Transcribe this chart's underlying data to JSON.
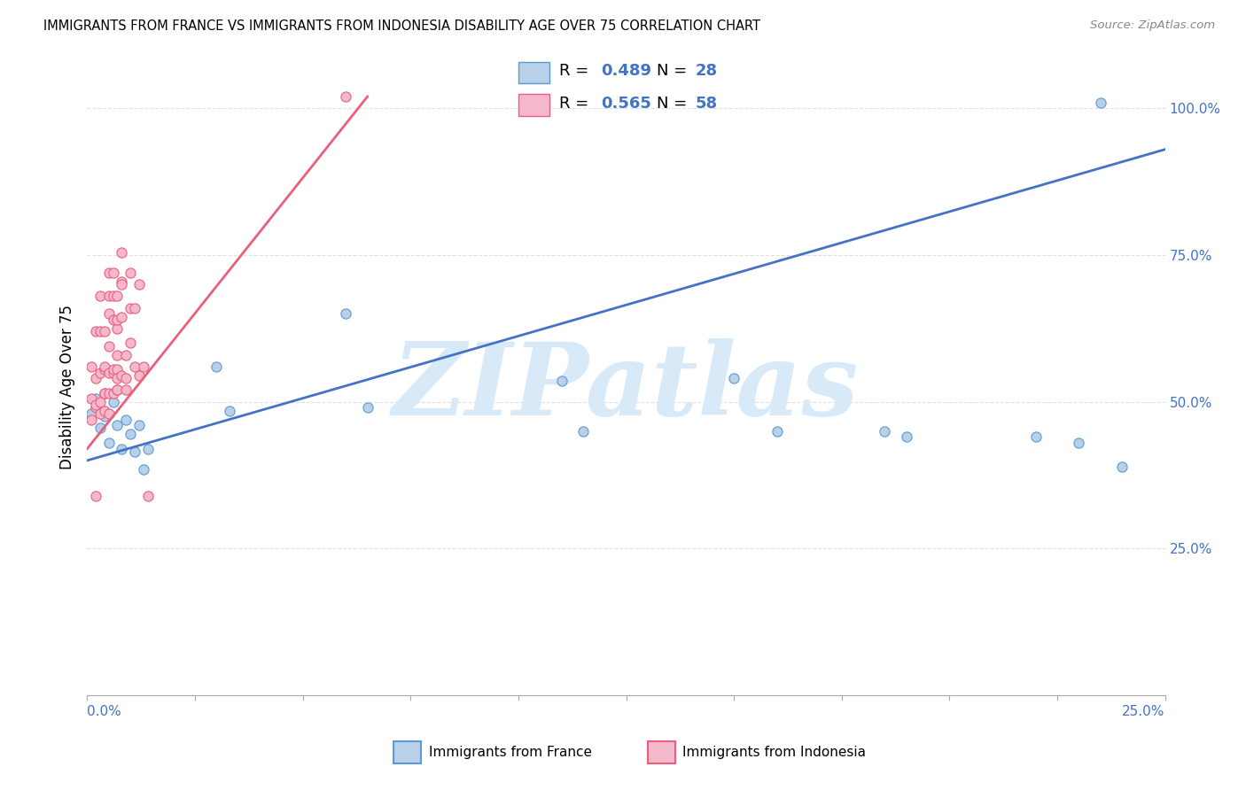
{
  "title": "IMMIGRANTS FROM FRANCE VS IMMIGRANTS FROM INDONESIA DISABILITY AGE OVER 75 CORRELATION CHART",
  "source": "Source: ZipAtlas.com",
  "ylabel": "Disability Age Over 75",
  "xlim": [
    0.0,
    0.25
  ],
  "ylim": [
    0.0,
    1.05
  ],
  "france_R": 0.489,
  "france_N": 28,
  "indonesia_R": 0.565,
  "indonesia_N": 58,
  "france_dot_color": "#b8d0e8",
  "france_dot_edge": "#5b9bd5",
  "indonesia_dot_color": "#f4b8ca",
  "indonesia_dot_edge": "#e86080",
  "france_line_color": "#4472c4",
  "indonesia_line_color": "#e8607a",
  "watermark": "ZIPatlas",
  "watermark_color": "#d8eaf8",
  "axis_color": "#4472c4",
  "grid_color": "#e0e0e0",
  "france_x": [
    0.001,
    0.002,
    0.003,
    0.004,
    0.005,
    0.006,
    0.007,
    0.008,
    0.009,
    0.01,
    0.011,
    0.012,
    0.013,
    0.014,
    0.03,
    0.033,
    0.06,
    0.065,
    0.11,
    0.115,
    0.15,
    0.16,
    0.185,
    0.19,
    0.22,
    0.23,
    0.235,
    0.24
  ],
  "france_y": [
    0.48,
    0.505,
    0.455,
    0.475,
    0.43,
    0.5,
    0.46,
    0.42,
    0.47,
    0.445,
    0.415,
    0.46,
    0.385,
    0.42,
    0.56,
    0.485,
    0.65,
    0.49,
    0.535,
    0.45,
    0.54,
    0.45,
    0.45,
    0.44,
    0.44,
    0.43,
    1.01,
    0.39
  ],
  "indonesia_x": [
    0.001,
    0.001,
    0.001,
    0.002,
    0.002,
    0.002,
    0.002,
    0.002,
    0.003,
    0.003,
    0.003,
    0.003,
    0.003,
    0.004,
    0.004,
    0.004,
    0.004,
    0.004,
    0.004,
    0.005,
    0.005,
    0.005,
    0.005,
    0.005,
    0.005,
    0.005,
    0.006,
    0.006,
    0.006,
    0.006,
    0.006,
    0.006,
    0.007,
    0.007,
    0.007,
    0.007,
    0.007,
    0.007,
    0.007,
    0.007,
    0.008,
    0.008,
    0.008,
    0.008,
    0.008,
    0.009,
    0.009,
    0.009,
    0.01,
    0.01,
    0.01,
    0.011,
    0.011,
    0.012,
    0.012,
    0.013,
    0.014,
    0.06
  ],
  "indonesia_y": [
    0.47,
    0.505,
    0.56,
    0.49,
    0.54,
    0.62,
    0.495,
    0.34,
    0.5,
    0.48,
    0.55,
    0.68,
    0.62,
    0.555,
    0.515,
    0.485,
    0.515,
    0.62,
    0.56,
    0.65,
    0.595,
    0.55,
    0.515,
    0.48,
    0.72,
    0.68,
    0.72,
    0.68,
    0.55,
    0.555,
    0.515,
    0.64,
    0.52,
    0.68,
    0.625,
    0.555,
    0.64,
    0.58,
    0.54,
    0.52,
    0.755,
    0.705,
    0.645,
    0.7,
    0.545,
    0.58,
    0.54,
    0.52,
    0.72,
    0.66,
    0.6,
    0.66,
    0.56,
    0.7,
    0.545,
    0.56,
    0.34,
    1.02
  ],
  "france_line_x0": 0.0,
  "france_line_y0": 0.4,
  "france_line_x1": 0.25,
  "france_line_y1": 0.93,
  "indonesia_line_x0": 0.0,
  "indonesia_line_y0": 0.42,
  "indonesia_line_x1": 0.065,
  "indonesia_line_y1": 1.02
}
